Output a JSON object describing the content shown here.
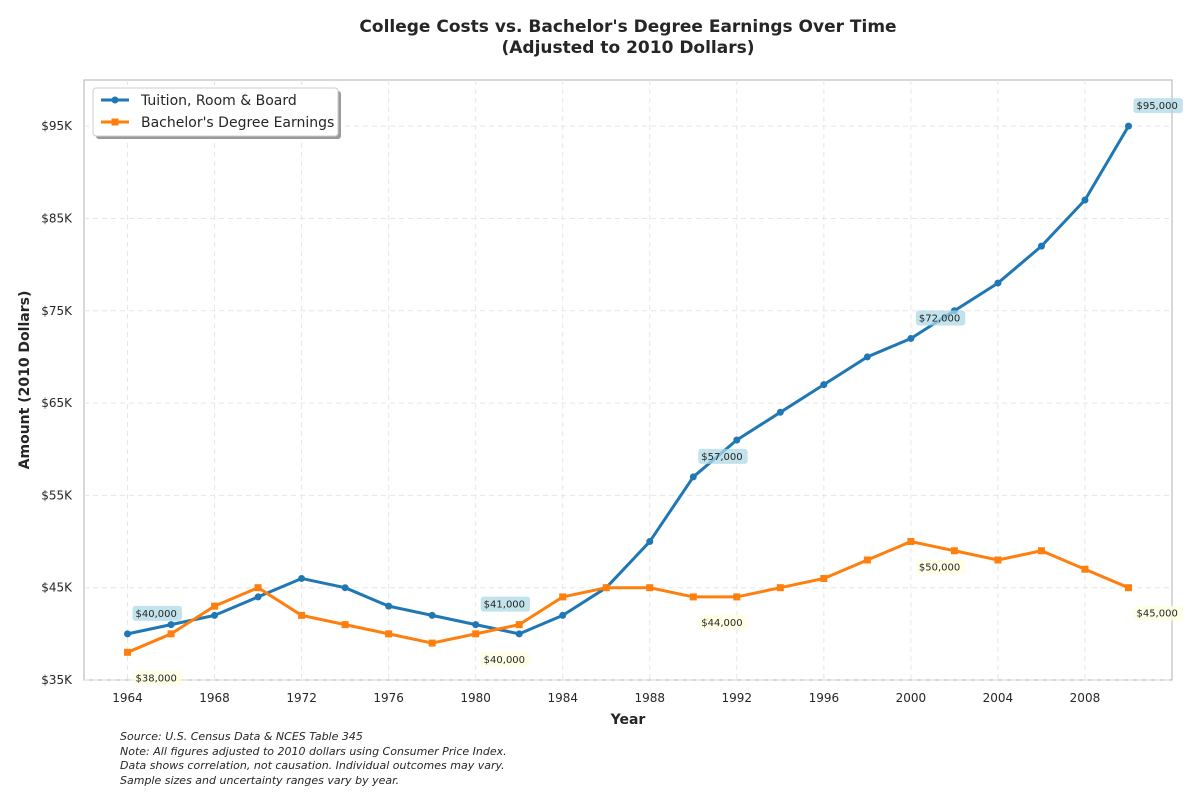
{
  "chart_data": {
    "type": "line",
    "title": [
      "College Costs vs. Bachelor's Degree Earnings Over Time",
      "(Adjusted to 2010 Dollars)"
    ],
    "xlabel": "Year",
    "ylabel": "Amount (2010 Dollars)",
    "x": [
      1964,
      1966,
      1968,
      1970,
      1972,
      1974,
      1976,
      1978,
      1980,
      1982,
      1984,
      1986,
      1988,
      1990,
      1992,
      1994,
      1996,
      1998,
      2000,
      2002,
      2004,
      2006,
      2008,
      2010
    ],
    "xticks": [
      1964,
      1968,
      1972,
      1976,
      1980,
      1984,
      1988,
      1992,
      1996,
      2000,
      2004,
      2008
    ],
    "xtick_labels": [
      "1964",
      "1968",
      "1972",
      "1976",
      "1980",
      "1984",
      "1988",
      "1992",
      "1996",
      "2000",
      "2004",
      "2008"
    ],
    "xlim": [
      1962,
      2012
    ],
    "ylim": [
      35000,
      100000
    ],
    "yticks": [
      35000,
      45000,
      55000,
      65000,
      75000,
      85000,
      95000
    ],
    "ytick_labels": [
      "$35K",
      "$45K",
      "$55K",
      "$65K",
      "$75K",
      "$85K",
      "$95K"
    ],
    "grid": true,
    "legend_position": "top-left",
    "series": [
      {
        "name": "Tuition, Room & Board",
        "color": "#1f77b4",
        "marker": "circle",
        "values": [
          40000,
          41000,
          42000,
          44000,
          46000,
          45000,
          43000,
          42000,
          41000,
          40000,
          42000,
          45000,
          50000,
          57000,
          61000,
          64000,
          67000,
          70000,
          72000,
          75000,
          78000,
          82000,
          87000,
          95000
        ]
      },
      {
        "name": "Bachelor's Degree Earnings",
        "color": "#ff7f0e",
        "marker": "square",
        "values": [
          38000,
          40000,
          43000,
          45000,
          42000,
          41000,
          40000,
          39000,
          40000,
          41000,
          44000,
          45000,
          45000,
          44000,
          44000,
          45000,
          46000,
          48000,
          50000,
          49000,
          48000,
          49000,
          47000,
          45000
        ]
      }
    ],
    "annotations": [
      {
        "series": 0,
        "x": 1964,
        "value": 40000,
        "text": "$40,000",
        "placement": "above",
        "bg": "#add8e6"
      },
      {
        "series": 0,
        "x": 1980,
        "value": 41000,
        "text": "$41,000",
        "placement": "above",
        "bg": "#add8e6"
      },
      {
        "series": 0,
        "x": 1990,
        "value": 57000,
        "text": "$57,000",
        "placement": "above",
        "bg": "#add8e6"
      },
      {
        "series": 0,
        "x": 2000,
        "value": 72000,
        "text": "$72,000",
        "placement": "above",
        "bg": "#add8e6"
      },
      {
        "series": 0,
        "x": 2010,
        "value": 95000,
        "text": "$95,000",
        "placement": "above",
        "bg": "#add8e6"
      },
      {
        "series": 1,
        "x": 1964,
        "value": 38000,
        "text": "$38,000",
        "placement": "below",
        "bg": "#ffffe0"
      },
      {
        "series": 1,
        "x": 1980,
        "value": 40000,
        "text": "$40,000",
        "placement": "below",
        "bg": "#ffffe0"
      },
      {
        "series": 1,
        "x": 1990,
        "value": 44000,
        "text": "$44,000",
        "placement": "below",
        "bg": "#ffffe0"
      },
      {
        "series": 1,
        "x": 2000,
        "value": 50000,
        "text": "$50,000",
        "placement": "below",
        "bg": "#ffffe0"
      },
      {
        "series": 1,
        "x": 2010,
        "value": 45000,
        "text": "$45,000",
        "placement": "below",
        "bg": "#ffffe0"
      }
    ]
  },
  "footnote": [
    "Source: U.S. Census Data & NCES Table 345",
    "Note: All figures adjusted to 2010 dollars using Consumer Price Index.",
    "Data shows correlation, not causation. Individual outcomes may vary.",
    "Sample sizes and uncertainty ranges vary by year."
  ]
}
